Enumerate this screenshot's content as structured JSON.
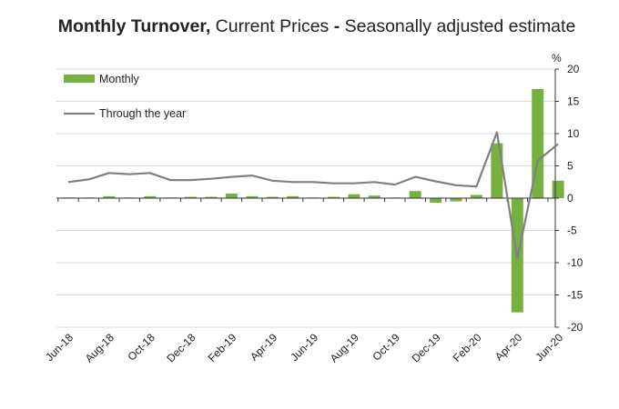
{
  "title": {
    "bold": "Monthly Turnover,",
    "rest": " Current Prices ",
    "dash": "-",
    "tail": " Seasonally adjusted estimate"
  },
  "colors": {
    "bar": "#76b041",
    "line": "#808080",
    "grid": "#d9d9d9",
    "axis": "#333333"
  },
  "chart_data": {
    "type": "bar",
    "title": "Monthly Turnover, Current Prices - Seasonally adjusted estimate",
    "ylabel": "%",
    "ylim": [
      -20,
      20
    ],
    "yticks": [
      20,
      15,
      10,
      5,
      0,
      -5,
      -10,
      -15,
      -20
    ],
    "grid": true,
    "legend_position": "top-left",
    "categories": [
      "Jun-18",
      "Jul-18",
      "Aug-18",
      "Sep-18",
      "Oct-18",
      "Nov-18",
      "Dec-18",
      "Jan-19",
      "Feb-19",
      "Mar-19",
      "Apr-19",
      "May-19",
      "Jun-19",
      "Jul-19",
      "Aug-19",
      "Sep-19",
      "Oct-19",
      "Nov-19",
      "Dec-19",
      "Jan-20",
      "Feb-20",
      "Mar-20",
      "Apr-20",
      "May-20",
      "Jun-20"
    ],
    "x_tick_labels": [
      "Jun-18",
      "Aug-18",
      "Oct-18",
      "Dec-18",
      "Feb-19",
      "Apr-19",
      "Jun-19",
      "Aug-19",
      "Oct-19",
      "Dec-19",
      "Feb-20",
      "Apr-20",
      "Jun-20"
    ],
    "series": [
      {
        "name": "Monthly",
        "kind": "bar",
        "values": [
          0.1,
          0.1,
          0.3,
          0.1,
          0.3,
          0.1,
          0.2,
          0.2,
          0.7,
          0.3,
          0.2,
          0.3,
          0.1,
          0.2,
          0.6,
          0.4,
          0.1,
          1.1,
          -0.7,
          -0.5,
          0.5,
          8.5,
          -17.7,
          16.9,
          2.7
        ]
      },
      {
        "name": "Through the year",
        "kind": "line",
        "values": [
          2.5,
          2.9,
          3.9,
          3.7,
          3.9,
          2.8,
          2.8,
          3.0,
          3.3,
          3.5,
          2.7,
          2.5,
          2.5,
          2.3,
          2.3,
          2.5,
          2.1,
          3.3,
          2.6,
          2.0,
          1.8,
          10.2,
          -9.4,
          5.8,
          8.4
        ]
      }
    ]
  }
}
